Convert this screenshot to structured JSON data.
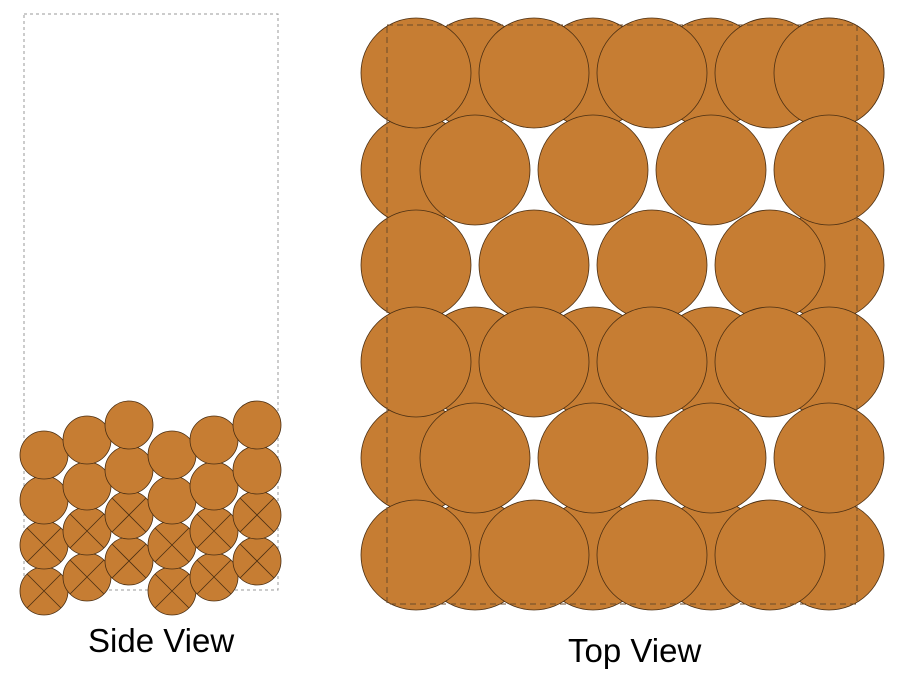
{
  "side_view": {
    "caption": "Side View"
  },
  "top_view": {
    "caption": "Top View"
  },
  "colors": {
    "particle_fill": "#c67d33",
    "particle_stroke": "#4a2e12",
    "container_stroke": "#9a9a9a",
    "top_container_stroke": "#6b4a2a"
  }
}
